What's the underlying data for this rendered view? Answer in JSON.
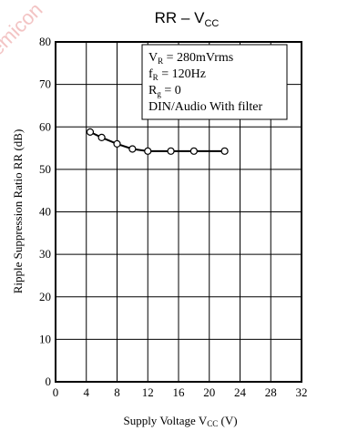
{
  "watermark": "semicon",
  "chart_data": {
    "type": "line",
    "title": {
      "main": "RR – V",
      "sub": "CC"
    },
    "xlabel": {
      "main": "Supply Voltage V",
      "sub": "CC",
      "unit": " (V)"
    },
    "ylabel": "Ripple Suppression Ratio RR (dB)",
    "xlim": [
      0,
      32
    ],
    "ylim": [
      0,
      80
    ],
    "xticks": [
      0,
      4,
      8,
      12,
      16,
      20,
      24,
      28,
      32
    ],
    "yticks": [
      0,
      10,
      20,
      30,
      40,
      50,
      60,
      70,
      80
    ],
    "grid": true,
    "series": [
      {
        "x": [
          4.5,
          6,
          8,
          10,
          12,
          15,
          18,
          22
        ],
        "y": [
          58.8,
          57.5,
          56,
          54.8,
          54.3,
          54.3,
          54.3,
          54.3
        ]
      }
    ],
    "legend": {
      "position": "top-right",
      "lines": [
        {
          "main": "V",
          "sub": "R",
          "rest": " = 280mVrms"
        },
        {
          "main": "f",
          "sub": "R",
          "rest": " = 120Hz"
        },
        {
          "main": "R",
          "sub": "g",
          "rest": " = 0"
        },
        {
          "main": "DIN/Audio With filter",
          "sub": "",
          "rest": ""
        }
      ]
    }
  }
}
